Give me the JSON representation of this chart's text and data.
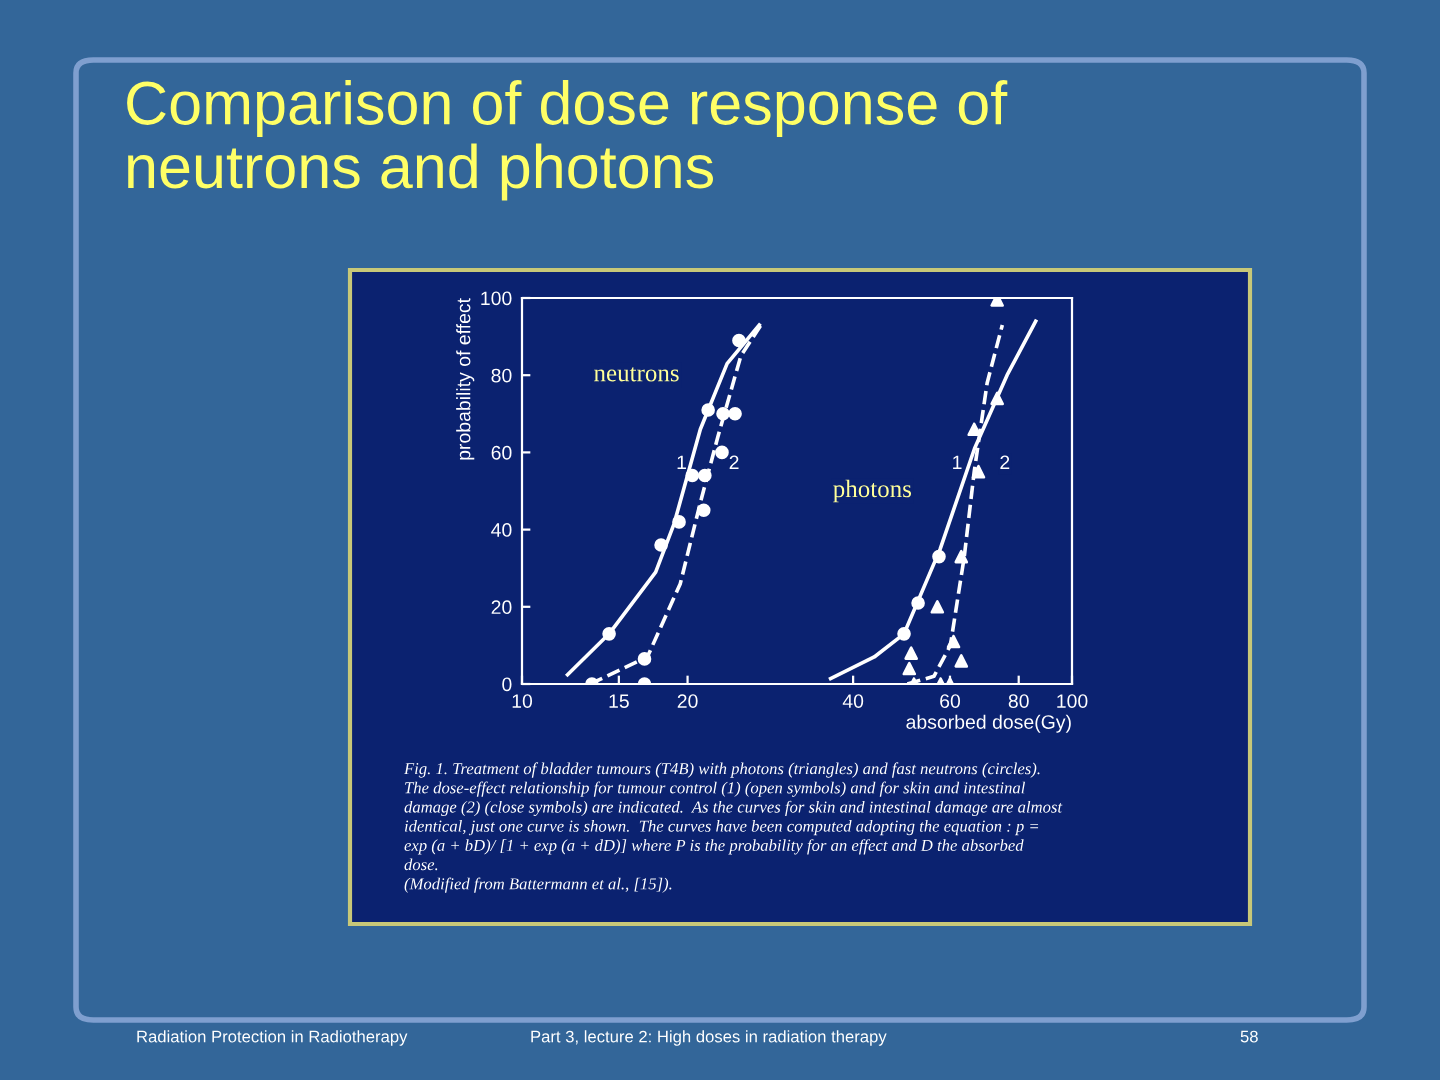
{
  "chart_data": {
    "type": "line",
    "title": "Comparison of dose response of\nneutrons and photons",
    "xlabel": "absorbed dose(Gy)",
    "ylabel": "probability of effect",
    "log": "x",
    "xlim": [
      10,
      100
    ],
    "xticks": [
      10,
      15,
      20,
      40,
      60,
      80,
      100
    ],
    "ylim": [
      0,
      100
    ],
    "yticks": [
      0,
      20,
      40,
      60,
      80,
      100
    ],
    "grid": false,
    "legend": false,
    "series": [
      {
        "color": "#ffffff",
        "line_style": "solid",
        "marker": "none",
        "x": [
          12.1,
          14.4,
          17.5,
          18.9,
          21.1,
          23.6,
          27.0
        ],
        "values": [
          2.4,
          13,
          29,
          41.5,
          66,
          83,
          93
        ]
      },
      {
        "color": "#ffffff",
        "line_style": "dashed",
        "marker": "none",
        "x": [
          13.3,
          16.9,
          19.4,
          21.1,
          22.7,
          25.0,
          27.2
        ],
        "values": [
          0,
          7,
          26,
          47,
          64,
          85,
          93
        ]
      },
      {
        "color": "#ffffff",
        "line_style": "solid",
        "marker": "none",
        "x": [
          36.4,
          43.7,
          49.5,
          57.6,
          66.5,
          76.2,
          85.9
        ],
        "values": [
          1.4,
          7,
          13,
          35,
          61,
          80,
          94
        ]
      },
      {
        "color": "#ffffff",
        "line_style": "dashed",
        "marker": "none",
        "x": [
          50.2,
          56.1,
          60.1,
          63.7,
          66.4,
          70.1,
          74.7
        ],
        "values": [
          0,
          2,
          10,
          33,
          55,
          78,
          93
        ]
      },
      {
        "type": "scatter",
        "color": "#ffffff",
        "marker": "circle",
        "x": [
          14.4,
          17.9,
          19.3,
          20.4,
          21.8,
          24.8
        ],
        "values": [
          13,
          36,
          42,
          54,
          71,
          89
        ]
      },
      {
        "type": "scatter",
        "color": "#ffffff",
        "marker": "circle",
        "x": [
          13.4,
          16.7,
          16.7,
          21.4,
          21.5,
          23.1,
          23.2,
          24.4
        ],
        "values": [
          0,
          6.5,
          0,
          45,
          54,
          60,
          70,
          70
        ]
      },
      {
        "type": "scatter",
        "color": "#ffffff",
        "marker": "circle",
        "x": [
          49.5,
          52.5,
          57.3
        ],
        "values": [
          13,
          21,
          33
        ]
      },
      {
        "type": "scatter",
        "color": "#ffffff",
        "marker": "triangle",
        "x": [
          51.0,
          66.4
        ],
        "values": [
          8,
          66
        ]
      },
      {
        "type": "scatter",
        "color": "#ffffff",
        "marker": "triangle",
        "x": [
          50.6,
          51.6,
          56.9,
          57.7,
          60.0,
          60.9,
          62.9,
          62.9,
          67.6,
          73.1,
          73.1
        ],
        "values": [
          4,
          0,
          20,
          0,
          0,
          11,
          33,
          6,
          55,
          74,
          99.5
        ]
      }
    ],
    "annotations": [
      {
        "text": "1",
        "x": 19.5,
        "y": 57
      },
      {
        "text": "2",
        "x": 24.3,
        "y": 57
      },
      {
        "text": "1",
        "x": 61.8,
        "y": 57
      },
      "neutrons",
      "photons",
      "2",
      "Fig. 1. Treatment of bladder tumours (T4B) with photons (triangles) and fast neutrons (circles).",
      "The dose-effect relationship for tumour control (1) (open symbols) and for skin and intestinal",
      "damage (2) (close symbols) are indicated.  As the curves for skin and intestinal damage are almost",
      "identical, just one curve is shown.  The curves have been computed adopting the equation : p =",
      "exp (a + bD)/ [1 + exp (a + dD)] where P is the probability for an effect and D the absorbed",
      "dose.",
      "(Modified from Battermann et al., [15]).",
      "Radiation Protection in Radiotherapy",
      "Part 3, lecture 2: High doses in radiation therapy",
      "58"
    ]
  }
}
